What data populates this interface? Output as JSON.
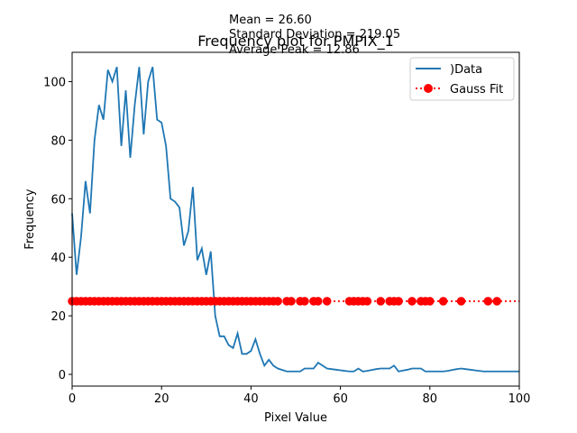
{
  "chart_data": {
    "type": "line",
    "title": "Frequency plot for PMPIX_1",
    "annotations": {
      "mean": "Mean = 26.60",
      "std": "Standard Deviation = 219.05",
      "peak": "Average Peak = 12.86"
    },
    "xlabel": "Pixel Value",
    "ylabel": "Frequency",
    "xlim": [
      0,
      100
    ],
    "ylim": [
      -4,
      110
    ],
    "xticks": [
      0,
      20,
      40,
      60,
      80,
      100
    ],
    "yticks": [
      0,
      20,
      40,
      60,
      80,
      100
    ],
    "grid": false,
    "legend_position": "top-right",
    "series": [
      {
        "name": ")Data",
        "style": "line",
        "color": "#1f77b4",
        "x": [
          0,
          1,
          2,
          3,
          4,
          5,
          6,
          7,
          8,
          9,
          10,
          11,
          12,
          13,
          14,
          15,
          16,
          17,
          18,
          19,
          20,
          21,
          22,
          23,
          24,
          25,
          26,
          27,
          28,
          29,
          30,
          31,
          32,
          33,
          34,
          35,
          36,
          37,
          38,
          39,
          40,
          41,
          42,
          43,
          44,
          45,
          46,
          47,
          48,
          49,
          50,
          51,
          52,
          53,
          54,
          55,
          56,
          57,
          58,
          59,
          60,
          61,
          62,
          63,
          64,
          65,
          66,
          67,
          68,
          69,
          70,
          71,
          72,
          73,
          74,
          75,
          76,
          77,
          78,
          79,
          80,
          81,
          82,
          83,
          84,
          85,
          86,
          87,
          88,
          89,
          90,
          91,
          92,
          93,
          94,
          95,
          96,
          97,
          98,
          99,
          100
        ],
        "y": [
          55,
          34,
          47,
          66,
          55,
          80,
          92,
          87,
          104,
          100,
          105,
          78,
          97,
          74,
          92,
          105,
          82,
          100,
          105,
          87,
          86,
          78,
          60,
          59,
          57,
          44,
          49,
          64,
          39,
          43,
          34,
          42,
          20,
          13,
          13,
          10,
          9,
          14,
          7,
          7,
          8,
          12,
          7,
          3,
          5,
          3,
          2,
          1.5,
          1,
          1,
          1,
          1,
          2,
          2,
          2,
          4,
          3,
          2,
          1.8,
          1.6,
          1.4,
          1.2,
          1,
          1,
          2,
          1,
          1.2,
          1.5,
          1.8,
          2,
          2,
          2,
          3,
          1,
          1.3,
          1.6,
          2,
          2,
          2,
          1,
          1,
          1,
          1,
          1,
          1.2,
          1.5,
          1.8,
          2,
          1.8,
          1.6,
          1.4,
          1.2,
          1,
          1,
          1,
          1,
          1,
          1,
          1,
          1,
          1
        ]
      },
      {
        "name": "Gauss Fit",
        "style": "dotted-marker",
        "color": "#ff0000",
        "y_value": 25,
        "x": [
          0,
          1,
          2,
          3,
          4,
          5,
          6,
          7,
          8,
          9,
          10,
          11,
          12,
          13,
          14,
          15,
          16,
          17,
          18,
          19,
          20,
          21,
          22,
          23,
          24,
          25,
          26,
          27,
          28,
          29,
          30,
          31,
          32,
          33,
          34,
          35,
          36,
          37,
          38,
          39,
          40,
          41,
          42,
          43,
          44,
          45,
          46,
          48,
          49,
          51,
          52,
          54,
          55,
          57,
          62,
          63,
          64,
          65,
          66,
          69,
          71,
          72,
          73,
          76,
          78,
          79,
          80,
          83,
          87,
          93,
          95
        ],
        "line_extends_to": 100
      }
    ]
  }
}
